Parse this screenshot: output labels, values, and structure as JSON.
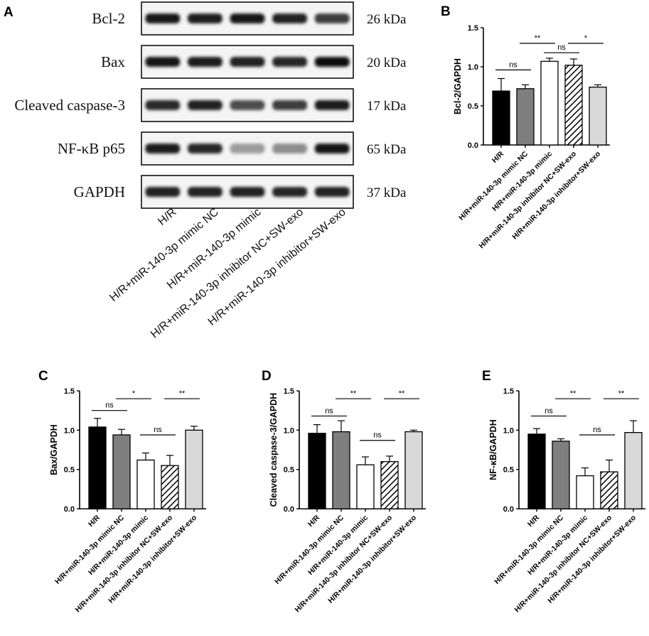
{
  "blot": {
    "letter": "A",
    "proteins": [
      {
        "name": "Bcl-2",
        "kda": "26 kDa",
        "intensities": [
          0.95,
          0.92,
          0.95,
          0.9,
          0.78
        ]
      },
      {
        "name": "Bax",
        "kda": "20 kDa",
        "intensities": [
          0.95,
          0.93,
          0.9,
          0.88,
          0.98
        ]
      },
      {
        "name": "Cleaved caspase-3",
        "kda": "17 kDa",
        "intensities": [
          0.85,
          0.9,
          0.7,
          0.78,
          0.92
        ]
      },
      {
        "name": "NF-κB p65",
        "kda": "65 kDa",
        "intensities": [
          0.92,
          0.88,
          0.35,
          0.42,
          0.95
        ]
      },
      {
        "name": "GAPDH",
        "kda": "37 kDa",
        "intensities": [
          0.9,
          0.9,
          0.9,
          0.88,
          0.9
        ]
      }
    ],
    "lanes": [
      "H/R",
      "H/R+miR-140-3p mimic NC",
      "H/R+miR-140-3p mimic",
      "H/R+miR-140-3p inhibitor NC+SW-exo",
      "H/R+miR-140-3p inhibitor+SW-exo"
    ]
  },
  "chart_data": [
    {
      "letter": "B",
      "type": "bar",
      "ylabel": "Bcl-2/GAPDH",
      "ylim": [
        0,
        1.5
      ],
      "yticks": [
        "0.0",
        "0.5",
        "1.0",
        "1.5"
      ],
      "categories": [
        "H/R",
        "H/R+miR-140-3p mimic NC",
        "H/R+miR-140-3p mimic",
        "H/R+miR-140-3p inhibitor NC+SW-exo",
        "H/R+miR-140-3p inhibitor+SW-exo"
      ],
      "values": [
        0.69,
        0.72,
        1.07,
        1.02,
        0.74
      ],
      "errors": [
        0.16,
        0.05,
        0.04,
        0.08,
        0.03
      ],
      "significance": [
        {
          "from": 0,
          "to": 1,
          "label": "ns",
          "y": 0.96
        },
        {
          "from": 1,
          "to": 2,
          "label": "**",
          "y": 1.3
        },
        {
          "from": 2,
          "to": 3,
          "label": "ns",
          "y": 1.18
        },
        {
          "from": 3,
          "to": 4,
          "label": "*",
          "y": 1.3
        }
      ]
    },
    {
      "letter": "C",
      "type": "bar",
      "ylabel": "Bax/GAPDH",
      "ylim": [
        0,
        1.5
      ],
      "yticks": [
        "0.0",
        "0.5",
        "1.0",
        "1.5"
      ],
      "categories": [
        "H/R",
        "H/R+miR-140-3p mimic NC",
        "H/R+miR-140-3p mimic",
        "H/R+miR-140-3p inhibitor NC+SW-exo",
        "H/R+miR-140-3p inhibitor+SW-exo"
      ],
      "values": [
        1.04,
        0.94,
        0.62,
        0.55,
        1.0
      ],
      "errors": [
        0.11,
        0.07,
        0.09,
        0.13,
        0.05
      ],
      "significance": [
        {
          "from": 0,
          "to": 1,
          "label": "ns",
          "y": 1.25
        },
        {
          "from": 1,
          "to": 2,
          "label": "*",
          "y": 1.4
        },
        {
          "from": 2,
          "to": 3,
          "label": "ns",
          "y": 0.94
        },
        {
          "from": 3,
          "to": 4,
          "label": "**",
          "y": 1.4
        }
      ]
    },
    {
      "letter": "D",
      "type": "bar",
      "ylabel": "Cleaved caspase-3/GAPDH",
      "ylim": [
        0,
        1.5
      ],
      "yticks": [
        "0.0",
        "0.5",
        "1.0",
        "1.5"
      ],
      "categories": [
        "H/R",
        "H/R+miR-140-3p mimic NC",
        "H/R+miR-140-3p mimic",
        "H/R+miR-140-3p inhibitor NC+SW-exo",
        "H/R+miR-140-3p inhibitor+SW-exo"
      ],
      "values": [
        0.96,
        0.98,
        0.56,
        0.6,
        0.98
      ],
      "errors": [
        0.11,
        0.14,
        0.1,
        0.07,
        0.02
      ],
      "significance": [
        {
          "from": 0,
          "to": 1,
          "label": "ns",
          "y": 1.18
        },
        {
          "from": 1,
          "to": 2,
          "label": "**",
          "y": 1.4
        },
        {
          "from": 2,
          "to": 3,
          "label": "ns",
          "y": 0.87
        },
        {
          "from": 3,
          "to": 4,
          "label": "**",
          "y": 1.4
        }
      ]
    },
    {
      "letter": "E",
      "type": "bar",
      "ylabel": "NF-κB/GAPDH",
      "ylim": [
        0,
        1.5
      ],
      "yticks": [
        "0.0",
        "0.5",
        "1.0",
        "1.5"
      ],
      "categories": [
        "H/R",
        "H/R+miR-140-3p mimic NC",
        "H/R+miR-140-3p mimic",
        "H/R+miR-140-3p inhibitor NC+SW-exo",
        "H/R+miR-140-3p inhibitor+SW-exo"
      ],
      "values": [
        0.95,
        0.86,
        0.42,
        0.47,
        0.97
      ],
      "errors": [
        0.07,
        0.03,
        0.1,
        0.15,
        0.15
      ],
      "significance": [
        {
          "from": 0,
          "to": 1,
          "label": "ns",
          "y": 1.18
        },
        {
          "from": 1,
          "to": 2,
          "label": "**",
          "y": 1.4
        },
        {
          "from": 2,
          "to": 3,
          "label": "ns",
          "y": 0.94
        },
        {
          "from": 3,
          "to": 4,
          "label": "**",
          "y": 1.4
        }
      ]
    }
  ],
  "style": {
    "bar_fills": [
      "#000000",
      "#7f7f7f",
      "#ffffff",
      "hatch",
      "#d9d9d9"
    ],
    "axis_color": "#000000"
  }
}
